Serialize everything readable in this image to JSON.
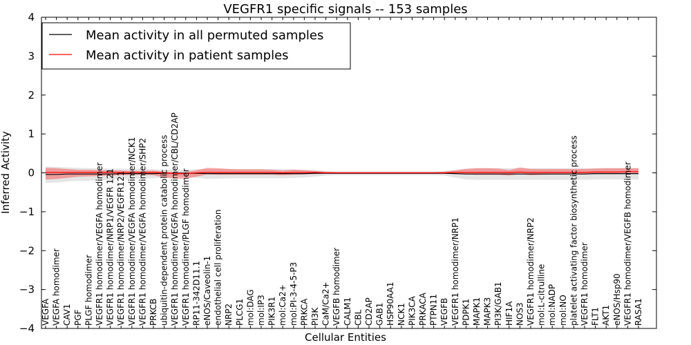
{
  "chart_data": {
    "type": "line",
    "title": "VEGFR1 specific signals -- 153 samples",
    "xlabel": "Cellular Entities",
    "ylabel": "Inferred Activity",
    "ylim": [
      -4,
      4
    ],
    "yticks": [
      "4",
      "3",
      "2",
      "1",
      "0",
      "−1",
      "−2",
      "−3",
      "−4"
    ],
    "grid": false,
    "legend_position": "top-left",
    "categories": [
      "VEGFA",
      "VEGFA homodimer",
      "CAV1",
      "PGF",
      "PLGF homodimer",
      "VEGFR1 homodimer/VEGFA homodimer",
      "VEGFR1 homodimer/NRP1/VEGFR 121",
      "VEGFR1 homodimer/NRP2/VEGFR121",
      "VEGFR1 homodimer/VEGFA homodimer/NCK1",
      "VEGFR1 homodimer/VEGFA homodimer/SHP2",
      "PRKCB",
      "ubiquitin-dependent protein catabolic process",
      "VEGFR1 homodimer/VEGFA homodimer/CBL/CD2AP",
      "VEGFR1 homodimer/PLGF homodimer",
      "RP11-342D11.1",
      "eNOS/Caveolin-1",
      "endothelial cell proliferation",
      "NRP2",
      "PLCG1",
      "mol:DAG",
      "mol:IP3",
      "PIK3R1",
      "mol:Ca2+",
      "mol:PI-3-4-5-P3",
      "PRKCA",
      "PI3K",
      "CaM/Ca2+",
      "VEGFB homodimer",
      "CALM1",
      "CBL",
      "CD2AP",
      "GAB1",
      "HSP90AA1",
      "NCK1",
      "PIK3CA",
      "PRKACA",
      "PTPN11",
      "VEGFB",
      "VEGFR1 homodimer/NRP1",
      "PDPK1",
      "MAPK1",
      "MAPK3",
      "PI3K/GAB1",
      "HIF1A",
      "NOS3",
      "VEGFR1 homodimer/NRP2",
      "mol:L-citrulline",
      "mol:NADP",
      "mol:NO",
      "platelet activating factor biosynthetic process",
      "VEGFR1 homodimer",
      "FLT1",
      "AKT1",
      "eNOS/Hsp90",
      "VEGFR1 homodimer/VEGFB homodimer",
      "RASA1"
    ],
    "series": [
      {
        "name": "Mean activity in all permuted samples",
        "color": "#000000",
        "band_color": "#999999",
        "values": [
          -0.04,
          -0.04,
          -0.03,
          -0.03,
          -0.03,
          -0.03,
          -0.03,
          -0.02,
          -0.02,
          -0.02,
          -0.02,
          -0.01,
          -0.01,
          -0.01,
          -0.01,
          -0.02,
          -0.02,
          -0.02,
          -0.02,
          -0.02,
          -0.02,
          -0.02,
          -0.02,
          -0.02,
          -0.02,
          -0.01,
          -0.01,
          -0.01,
          -0.01,
          -0.01,
          -0.01,
          -0.01,
          -0.01,
          -0.01,
          -0.01,
          -0.01,
          -0.01,
          -0.01,
          -0.02,
          -0.03,
          -0.03,
          -0.03,
          -0.03,
          -0.03,
          -0.03,
          -0.03,
          -0.03,
          -0.03,
          -0.03,
          -0.03,
          -0.03,
          -0.02,
          -0.02,
          -0.02,
          -0.02,
          -0.02
        ],
        "lower": [
          -0.26,
          -0.25,
          -0.22,
          -0.21,
          -0.2,
          -0.19,
          -0.18,
          -0.17,
          -0.16,
          -0.15,
          -0.14,
          -0.12,
          -0.1,
          -0.1,
          -0.12,
          -0.16,
          -0.15,
          -0.14,
          -0.14,
          -0.14,
          -0.14,
          -0.14,
          -0.14,
          -0.13,
          -0.12,
          -0.1,
          -0.07,
          -0.06,
          -0.06,
          -0.06,
          -0.06,
          -0.06,
          -0.06,
          -0.06,
          -0.06,
          -0.06,
          -0.06,
          -0.07,
          -0.12,
          -0.17,
          -0.18,
          -0.18,
          -0.18,
          -0.18,
          -0.18,
          -0.18,
          -0.18,
          -0.18,
          -0.18,
          -0.18,
          -0.18,
          -0.17,
          -0.17,
          -0.17,
          -0.17,
          -0.17
        ],
        "upper": [
          0.16,
          0.15,
          0.14,
          0.13,
          0.12,
          0.12,
          0.11,
          0.11,
          0.1,
          0.1,
          0.09,
          0.08,
          0.08,
          0.08,
          0.09,
          0.1,
          0.1,
          0.1,
          0.1,
          0.1,
          0.1,
          0.1,
          0.1,
          0.09,
          0.08,
          0.07,
          0.05,
          0.04,
          0.04,
          0.04,
          0.04,
          0.04,
          0.04,
          0.04,
          0.04,
          0.04,
          0.04,
          0.05,
          0.08,
          0.11,
          0.12,
          0.12,
          0.12,
          0.12,
          0.12,
          0.12,
          0.12,
          0.12,
          0.12,
          0.12,
          0.12,
          0.12,
          0.12,
          0.12,
          0.12,
          0.12
        ]
      },
      {
        "name": "Mean activity in patient samples",
        "color": "#ff0000",
        "band_color": "#ff0000",
        "values": [
          0.01,
          0.01,
          0.01,
          0.01,
          0.01,
          0.01,
          0.01,
          0.01,
          0.01,
          0.01,
          0.01,
          0.0,
          -0.02,
          -0.02,
          0.0,
          0.01,
          0.01,
          0.01,
          0.01,
          0.01,
          0.01,
          0.01,
          0.0,
          0.01,
          0.01,
          0.01,
          0.0,
          0.0,
          0.0,
          0.0,
          0.0,
          0.0,
          0.0,
          0.0,
          0.0,
          0.0,
          0.0,
          0.0,
          0.01,
          0.01,
          0.01,
          0.01,
          0.01,
          0.01,
          0.02,
          0.01,
          0.01,
          0.01,
          0.01,
          0.01,
          0.01,
          0.02,
          0.02,
          0.02,
          0.03,
          0.03
        ],
        "lower": [
          -0.17,
          -0.16,
          -0.13,
          -0.1,
          -0.09,
          -0.08,
          -0.07,
          -0.06,
          -0.05,
          -0.05,
          -0.06,
          -0.12,
          -0.15,
          -0.15,
          -0.1,
          -0.04,
          -0.05,
          -0.05,
          -0.05,
          -0.05,
          -0.05,
          -0.05,
          -0.06,
          -0.05,
          -0.04,
          -0.03,
          -0.02,
          -0.01,
          -0.01,
          -0.01,
          -0.01,
          -0.01,
          -0.01,
          -0.01,
          -0.01,
          -0.01,
          -0.01,
          -0.02,
          -0.03,
          -0.04,
          -0.05,
          -0.05,
          -0.05,
          -0.07,
          -0.03,
          -0.06,
          -0.05,
          -0.04,
          -0.04,
          -0.04,
          -0.04,
          -0.03,
          -0.03,
          -0.03,
          -0.02,
          -0.02
        ],
        "upper": [
          0.13,
          0.12,
          0.1,
          0.08,
          0.08,
          0.07,
          0.06,
          0.06,
          0.05,
          0.05,
          0.06,
          0.03,
          0.02,
          0.02,
          0.07,
          0.13,
          0.12,
          0.1,
          0.09,
          0.09,
          0.09,
          0.08,
          0.06,
          0.08,
          0.07,
          0.05,
          0.03,
          0.02,
          0.02,
          0.02,
          0.02,
          0.02,
          0.02,
          0.02,
          0.02,
          0.02,
          0.02,
          0.03,
          0.06,
          0.1,
          0.12,
          0.12,
          0.11,
          0.07,
          0.14,
          0.1,
          0.1,
          0.1,
          0.1,
          0.1,
          0.1,
          0.11,
          0.12,
          0.12,
          0.12,
          0.12
        ]
      }
    ]
  }
}
